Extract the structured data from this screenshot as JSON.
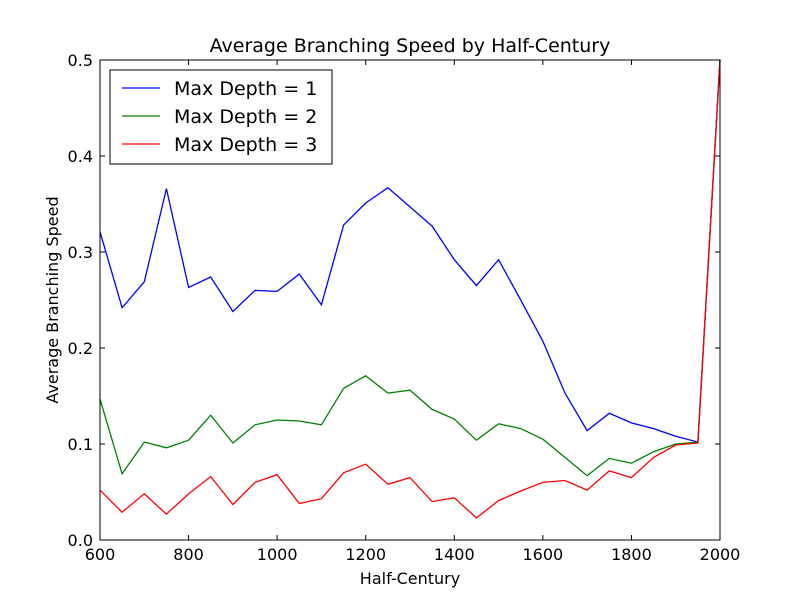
{
  "chart_data": {
    "type": "line",
    "title": "Average Branching Speed by Half-Century",
    "xlabel": "Half-Century",
    "ylabel": "Average Branching Speed",
    "xlim": [
      600,
      2000
    ],
    "ylim": [
      0.0,
      0.5
    ],
    "xticks": [
      600,
      800,
      1000,
      1200,
      1400,
      1600,
      1800,
      2000
    ],
    "yticks": [
      "0.0",
      "0.1",
      "0.2",
      "0.3",
      "0.4",
      "0.5"
    ],
    "grid": false,
    "legend_position": "top-left",
    "x": [
      600,
      650,
      700,
      750,
      800,
      850,
      900,
      950,
      1000,
      1050,
      1100,
      1150,
      1200,
      1250,
      1300,
      1350,
      1400,
      1450,
      1500,
      1550,
      1600,
      1650,
      1700,
      1750,
      1800,
      1850,
      1900,
      1950,
      2000
    ],
    "series": [
      {
        "name": "Max Depth = 1",
        "color": "#0000ff",
        "values": [
          0.321,
          0.242,
          0.269,
          0.366,
          0.263,
          0.274,
          0.238,
          0.26,
          0.259,
          0.277,
          0.245,
          0.328,
          0.351,
          0.367,
          0.347,
          0.327,
          0.292,
          0.265,
          0.292,
          0.25,
          0.207,
          0.153,
          0.114,
          0.132,
          0.122,
          0.116,
          0.108,
          0.102,
          0.5
        ]
      },
      {
        "name": "Max Depth = 2",
        "color": "#008000",
        "values": [
          0.147,
          0.069,
          0.102,
          0.096,
          0.104,
          0.13,
          0.101,
          0.12,
          0.125,
          0.124,
          0.12,
          0.158,
          0.171,
          0.153,
          0.156,
          0.136,
          0.126,
          0.104,
          0.121,
          0.116,
          0.105,
          0.086,
          0.067,
          0.085,
          0.08,
          0.092,
          0.1,
          0.102,
          0.5
        ]
      },
      {
        "name": "Max Depth = 3",
        "color": "#ff0000",
        "values": [
          0.052,
          0.029,
          0.048,
          0.027,
          0.048,
          0.066,
          0.037,
          0.06,
          0.068,
          0.038,
          0.043,
          0.07,
          0.079,
          0.058,
          0.065,
          0.04,
          0.044,
          0.023,
          0.041,
          0.051,
          0.06,
          0.062,
          0.052,
          0.072,
          0.065,
          0.086,
          0.099,
          0.101,
          0.5
        ]
      }
    ]
  }
}
